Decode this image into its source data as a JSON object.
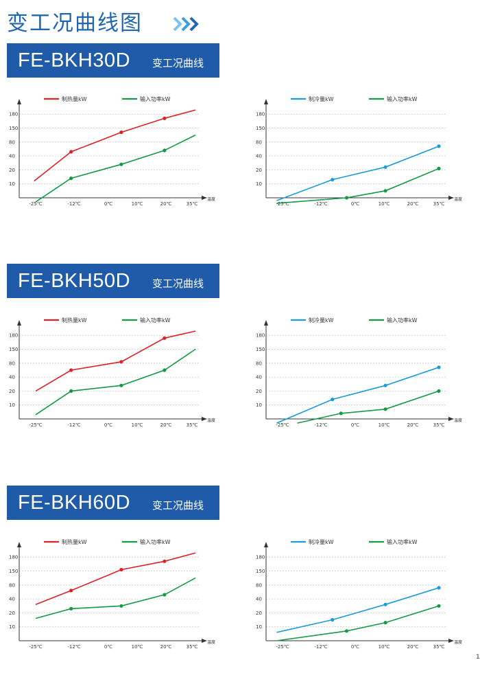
{
  "page": {
    "title": "变工况曲线图",
    "title_icon": "double-chevron-right-icon",
    "page_number": "1"
  },
  "colors": {
    "heat": "#e02026",
    "cool": "#1a9bdc",
    "power": "#139a43",
    "banner": "#1f5ba8",
    "title": "#1f67b1"
  },
  "sections": [
    {
      "model": "FE-BKH30D",
      "suffix": "变工况曲线"
    },
    {
      "model": "FE-BKH50D",
      "suffix": "变工况曲线"
    },
    {
      "model": "FE-BKH60D",
      "suffix": "变工况曲线"
    }
  ],
  "chart_data": [
    {
      "type": "line",
      "section": 0,
      "mode": "heating",
      "x_ticks": [
        "-25℃",
        "-12℃",
        "0℃",
        "10℃",
        "20℃",
        "35℃"
      ],
      "y_ticks": [
        "10",
        "20",
        "40",
        "80",
        "150",
        "180"
      ],
      "xlabel": "温度",
      "legend_position": "top",
      "grid": true,
      "series": [
        {
          "name": "制热量kW",
          "color": "heat",
          "points": [
            [
              -25.5,
              1.2
            ],
            [
              -13,
              3.3
            ],
            [
              4.5,
              4.7
            ],
            [
              19.5,
              5.7
            ],
            [
              37,
              6.3
            ]
          ],
          "markers": [
            1,
            2,
            3
          ]
        },
        {
          "name": "输入功率kW",
          "color": "power",
          "points": [
            [
              -25,
              -0.3
            ],
            [
              -13,
              1.4
            ],
            [
              4.5,
              2.4
            ],
            [
              19.5,
              3.4
            ],
            [
              37,
              4.5
            ]
          ],
          "markers": [
            1,
            2,
            3
          ]
        }
      ]
    },
    {
      "type": "line",
      "section": 0,
      "mode": "cooling",
      "x_ticks": [
        "-25℃",
        "-12℃",
        "0℃",
        "10℃",
        "20℃",
        "35℃"
      ],
      "y_ticks": [
        "10",
        "20",
        "40",
        "80",
        "150",
        "180"
      ],
      "xlabel": "温度",
      "legend_position": "top",
      "grid": true,
      "series": [
        {
          "name": "制冷量kW",
          "color": "cool",
          "points": [
            [
              -27,
              -0.2
            ],
            [
              -8,
              1.3
            ],
            [
              10.5,
              2.2
            ],
            [
              35,
              3.7
            ]
          ],
          "markers": [
            1,
            2,
            3
          ]
        },
        {
          "name": "输入功率kW",
          "color": "power",
          "points": [
            [
              -27,
              -0.4
            ],
            [
              -3,
              0.0
            ],
            [
              10.5,
              0.5
            ],
            [
              35,
              2.1
            ]
          ],
          "markers": [
            1,
            2,
            3
          ]
        }
      ]
    },
    {
      "type": "line",
      "section": 1,
      "mode": "heating",
      "x_ticks": [
        "-25℃",
        "-12℃",
        "0℃",
        "10℃",
        "20℃",
        "35℃"
      ],
      "y_ticks": [
        "10",
        "20",
        "40",
        "80",
        "150",
        "180"
      ],
      "xlabel": "温度",
      "legend_position": "top",
      "grid": true,
      "series": [
        {
          "name": "制热量kW",
          "color": "heat",
          "points": [
            [
              -25,
              2.0
            ],
            [
              -13,
              3.5
            ],
            [
              4.5,
              4.1
            ],
            [
              19.5,
              5.8
            ],
            [
              37,
              6.3
            ]
          ],
          "markers": [
            1,
            2,
            3
          ]
        },
        {
          "name": "输入功率kW",
          "color": "power",
          "points": [
            [
              -25,
              0.3
            ],
            [
              -13,
              2.0
            ],
            [
              4.5,
              2.4
            ],
            [
              19.5,
              3.5
            ],
            [
              37,
              5.0
            ]
          ],
          "markers": [
            1,
            2,
            3
          ]
        }
      ]
    },
    {
      "type": "line",
      "section": 1,
      "mode": "cooling",
      "x_ticks": [
        "-25℃",
        "-12℃",
        "0℃",
        "10℃",
        "20℃",
        "35℃"
      ],
      "y_ticks": [
        "10",
        "20",
        "40",
        "80",
        "150",
        "180"
      ],
      "xlabel": "温度",
      "legend_position": "top",
      "grid": true,
      "series": [
        {
          "name": "制冷量kW",
          "color": "cool",
          "points": [
            [
              -27,
              -0.3
            ],
            [
              -8,
              1.4
            ],
            [
              10.5,
              2.4
            ],
            [
              35,
              3.7
            ]
          ],
          "markers": [
            1,
            2,
            3
          ]
        },
        {
          "name": "输入功率kW",
          "color": "power",
          "points": [
            [
              -20,
              -0.3
            ],
            [
              -5,
              0.4
            ],
            [
              10.5,
              0.7
            ],
            [
              35,
              2.0
            ]
          ],
          "markers": [
            1,
            2,
            3
          ]
        }
      ]
    },
    {
      "type": "line",
      "section": 2,
      "mode": "heating",
      "x_ticks": [
        "-25℃",
        "-12℃",
        "0℃",
        "10℃",
        "20℃",
        "35℃"
      ],
      "y_ticks": [
        "10",
        "20",
        "40",
        "80",
        "150",
        "180"
      ],
      "xlabel": "温度",
      "legend_position": "top",
      "grid": true,
      "series": [
        {
          "name": "制热量kW",
          "color": "heat",
          "points": [
            [
              -25,
              2.6
            ],
            [
              -13,
              3.6
            ],
            [
              4.5,
              5.1
            ],
            [
              19.5,
              5.7
            ],
            [
              37,
              6.3
            ]
          ],
          "markers": [
            1,
            2,
            3
          ]
        },
        {
          "name": "输入功率kW",
          "color": "power",
          "points": [
            [
              -25,
              1.6
            ],
            [
              -13,
              2.3
            ],
            [
              4.5,
              2.5
            ],
            [
              19.5,
              3.3
            ],
            [
              37,
              4.5
            ]
          ],
          "markers": [
            1,
            2,
            3
          ]
        }
      ]
    },
    {
      "type": "line",
      "section": 2,
      "mode": "cooling",
      "x_ticks": [
        "-25℃",
        "-12℃",
        "0℃",
        "10℃",
        "20℃",
        "35℃"
      ],
      "y_ticks": [
        "10",
        "20",
        "40",
        "80",
        "150",
        "180"
      ],
      "xlabel": "温度",
      "legend_position": "top",
      "grid": true,
      "series": [
        {
          "name": "制冷量kW",
          "color": "cool",
          "points": [
            [
              -27,
              0.6
            ],
            [
              -8,
              1.5
            ],
            [
              10.5,
              2.6
            ],
            [
              35,
              3.8
            ]
          ],
          "markers": [
            1,
            2,
            3
          ]
        },
        {
          "name": "输入功率kW",
          "color": "power",
          "points": [
            [
              -27,
              0.0
            ],
            [
              -3,
              0.7
            ],
            [
              10.5,
              1.3
            ],
            [
              35,
              2.5
            ]
          ],
          "markers": [
            1,
            2,
            3
          ]
        }
      ]
    }
  ]
}
